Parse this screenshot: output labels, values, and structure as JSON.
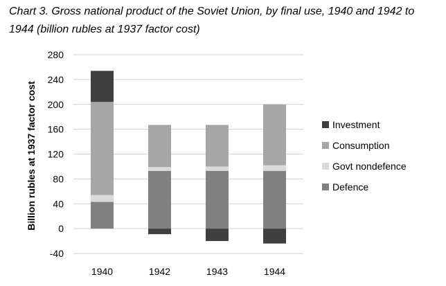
{
  "chart_data": {
    "type": "bar",
    "stacked": true,
    "title": "Chart 3. Gross national product of the Soviet Union, by final use, 1940 and 1942 to 1944 (billion rubles at 1937 factor cost)",
    "xlabel": "",
    "ylabel": "Billion rubles at 1937 factor cost",
    "ylim": [
      -40,
      280
    ],
    "yticks": [
      -40,
      0,
      40,
      80,
      120,
      160,
      200,
      240,
      280
    ],
    "grid": true,
    "legend_position": "right",
    "categories": [
      "1940",
      "1942",
      "1943",
      "1944"
    ],
    "series": [
      {
        "name": "Defence",
        "values": [
          43,
          93,
          93,
          93
        ],
        "color": "#808080"
      },
      {
        "name": "Govt nondefence",
        "values": [
          11,
          6,
          7,
          9
        ],
        "color": "#dadada"
      },
      {
        "name": "Consumption",
        "values": [
          150,
          68,
          67,
          98
        ],
        "color": "#a6a6a6"
      },
      {
        "name": "Investment",
        "values": [
          50,
          -9,
          -20,
          -24
        ],
        "color": "#3f3f3f"
      }
    ]
  }
}
